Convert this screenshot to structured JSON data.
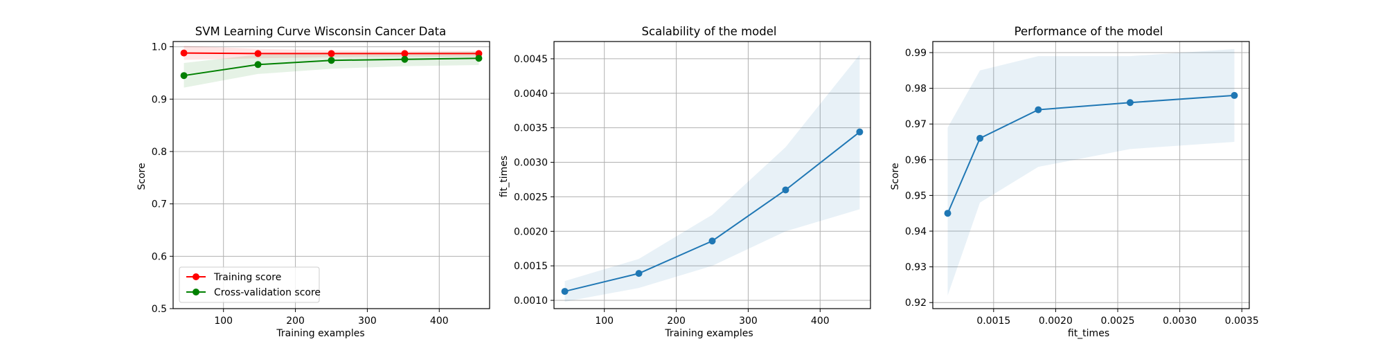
{
  "figure": {
    "background": "#ffffff"
  },
  "chart_data": [
    {
      "type": "line",
      "title": "SVM Learning Curve Wisconsin Cancer Data",
      "xlabel": "Training examples",
      "ylabel": "Score",
      "xlim": [
        30,
        470
      ],
      "ylim": [
        0.5,
        1.01
      ],
      "xticks": [
        100,
        200,
        300,
        400
      ],
      "xtick_labels": [
        "100",
        "200",
        "300",
        "400"
      ],
      "yticks": [
        0.5,
        0.6,
        0.7,
        0.8,
        0.9,
        1.0
      ],
      "ytick_labels": [
        "0.5",
        "0.6",
        "0.7",
        "0.8",
        "0.9",
        "1.0"
      ],
      "grid": true,
      "legend": "lower-left",
      "series": [
        {
          "name": "Training score",
          "color": "#ff0000",
          "x": [
            45,
            148,
            250,
            352,
            455
          ],
          "y": [
            0.988,
            0.987,
            0.987,
            0.987,
            0.987
          ],
          "band_lower": [
            0.975,
            0.978,
            0.98,
            0.981,
            0.981
          ],
          "band_upper": [
            1.002,
            0.996,
            0.993,
            0.992,
            0.992
          ]
        },
        {
          "name": "Cross-validation score",
          "color": "#008000",
          "x": [
            45,
            148,
            250,
            352,
            455
          ],
          "y": [
            0.945,
            0.966,
            0.974,
            0.976,
            0.978
          ],
          "band_lower": [
            0.922,
            0.948,
            0.958,
            0.963,
            0.965
          ],
          "band_upper": [
            0.969,
            0.985,
            0.989,
            0.989,
            0.991
          ]
        }
      ]
    },
    {
      "type": "line",
      "title": "Scalability of the model",
      "xlabel": "Training examples",
      "ylabel": "fit_times",
      "xlim": [
        30,
        470
      ],
      "ylim": [
        0.00088,
        0.00475
      ],
      "xticks": [
        100,
        200,
        300,
        400
      ],
      "xtick_labels": [
        "100",
        "200",
        "300",
        "400"
      ],
      "yticks": [
        0.001,
        0.0015,
        0.002,
        0.0025,
        0.003,
        0.0035,
        0.004,
        0.0045
      ],
      "ytick_labels": [
        "0.0010",
        "0.0015",
        "0.0020",
        "0.0025",
        "0.0030",
        "0.0035",
        "0.0040",
        "0.0045"
      ],
      "grid": true,
      "series": [
        {
          "color": "#1f77b4",
          "x": [
            45,
            148,
            250,
            352,
            455
          ],
          "y": [
            0.00113,
            0.00139,
            0.00186,
            0.0026,
            0.00344
          ],
          "band_lower": [
            0.00098,
            0.00118,
            0.0015,
            0.002,
            0.00232
          ],
          "band_upper": [
            0.00128,
            0.0016,
            0.00224,
            0.00322,
            0.00456
          ]
        }
      ]
    },
    {
      "type": "line",
      "title": "Performance of the model",
      "xlabel": "fit_times",
      "ylabel": "Score",
      "xlim": [
        0.00101,
        0.00356
      ],
      "ylim": [
        0.9183,
        0.9931
      ],
      "xticks": [
        0.0015,
        0.002,
        0.0025,
        0.003,
        0.0035
      ],
      "xtick_labels": [
        "0.0015",
        "0.0020",
        "0.0025",
        "0.0030",
        "0.0035"
      ],
      "yticks": [
        0.92,
        0.93,
        0.94,
        0.95,
        0.96,
        0.97,
        0.98,
        0.99
      ],
      "ytick_labels": [
        "0.92",
        "0.93",
        "0.94",
        "0.95",
        "0.96",
        "0.97",
        "0.98",
        "0.99"
      ],
      "grid": true,
      "series": [
        {
          "color": "#1f77b4",
          "x": [
            0.00113,
            0.00139,
            0.00186,
            0.0026,
            0.00344
          ],
          "y": [
            0.945,
            0.966,
            0.974,
            0.976,
            0.978
          ],
          "band_lower": [
            0.922,
            0.948,
            0.958,
            0.963,
            0.965
          ],
          "band_upper": [
            0.969,
            0.985,
            0.989,
            0.989,
            0.991
          ]
        }
      ]
    }
  ]
}
